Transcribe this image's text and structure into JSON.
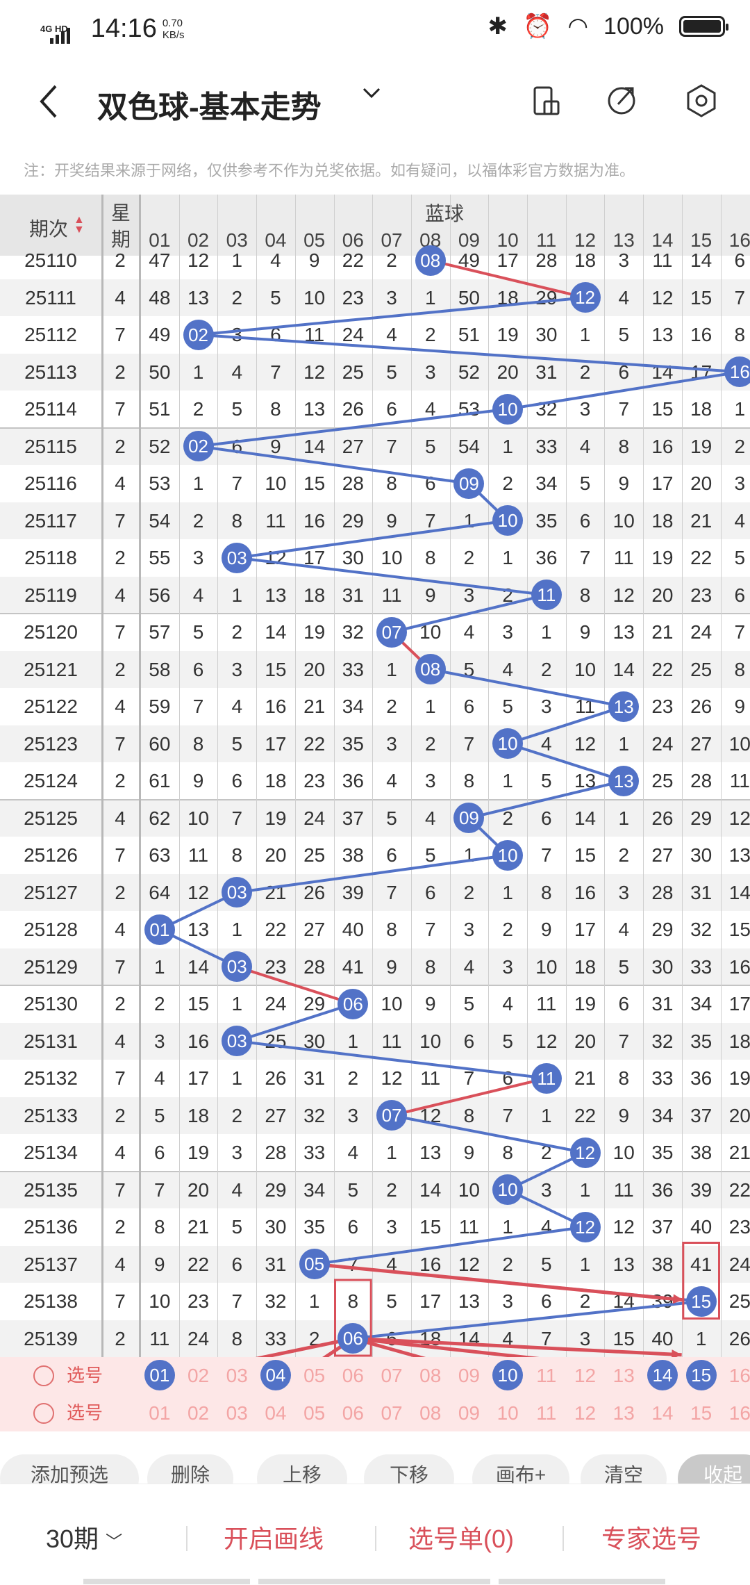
{
  "status": {
    "net": "4G HD",
    "time": "14:16",
    "speed_value": "0.70",
    "speed_unit": "KB/s",
    "battery": "100%"
  },
  "header": {
    "title": "双色球-基本走势"
  },
  "notice": "注：开奖结果来源于网络，仅供参考不作为兑奖依据。如有疑问，以福体彩官方数据为准。",
  "table": {
    "period_header": "期次",
    "week_header": "星期",
    "blue_header": "蓝球",
    "columns": [
      "01",
      "02",
      "03",
      "04",
      "05",
      "06",
      "07",
      "08",
      "09",
      "10",
      "11",
      "12",
      "13",
      "14",
      "15",
      "16"
    ],
    "rows": [
      {
        "period": "25110",
        "week": "2",
        "cells": [
          "47",
          "12",
          "1",
          "4",
          "9",
          "22",
          "2",
          "08",
          "49",
          "17",
          "28",
          "18",
          "3",
          "11",
          "14",
          "6"
        ]
      },
      {
        "period": "25111",
        "week": "4",
        "cells": [
          "48",
          "13",
          "2",
          "5",
          "10",
          "23",
          "3",
          "1",
          "50",
          "18",
          "29",
          "12",
          "4",
          "12",
          "15",
          "7"
        ]
      },
      {
        "period": "25112",
        "week": "7",
        "cells": [
          "49",
          "02",
          "3",
          "6",
          "11",
          "24",
          "4",
          "2",
          "51",
          "19",
          "30",
          "1",
          "5",
          "13",
          "16",
          "8"
        ]
      },
      {
        "period": "25113",
        "week": "2",
        "cells": [
          "50",
          "1",
          "4",
          "7",
          "12",
          "25",
          "5",
          "3",
          "52",
          "20",
          "31",
          "2",
          "6",
          "14",
          "17",
          "16"
        ]
      },
      {
        "period": "25114",
        "week": "7",
        "cells": [
          "51",
          "2",
          "5",
          "8",
          "13",
          "26",
          "6",
          "4",
          "53",
          "10",
          "32",
          "3",
          "7",
          "15",
          "18",
          "1"
        ]
      },
      {
        "period": "25115",
        "week": "2",
        "cells": [
          "52",
          "02",
          "6",
          "9",
          "14",
          "27",
          "7",
          "5",
          "54",
          "1",
          "33",
          "4",
          "8",
          "16",
          "19",
          "2"
        ]
      },
      {
        "period": "25116",
        "week": "4",
        "cells": [
          "53",
          "1",
          "7",
          "10",
          "15",
          "28",
          "8",
          "6",
          "09",
          "2",
          "34",
          "5",
          "9",
          "17",
          "20",
          "3"
        ]
      },
      {
        "period": "25117",
        "week": "7",
        "cells": [
          "54",
          "2",
          "8",
          "11",
          "16",
          "29",
          "9",
          "7",
          "1",
          "10",
          "35",
          "6",
          "10",
          "18",
          "21",
          "4"
        ]
      },
      {
        "period": "25118",
        "week": "2",
        "cells": [
          "55",
          "3",
          "03",
          "12",
          "17",
          "30",
          "10",
          "8",
          "2",
          "1",
          "36",
          "7",
          "11",
          "19",
          "22",
          "5"
        ]
      },
      {
        "period": "25119",
        "week": "4",
        "cells": [
          "56",
          "4",
          "1",
          "13",
          "18",
          "31",
          "11",
          "9",
          "3",
          "2",
          "11",
          "8",
          "12",
          "20",
          "23",
          "6"
        ]
      },
      {
        "period": "25120",
        "week": "7",
        "cells": [
          "57",
          "5",
          "2",
          "14",
          "19",
          "32",
          "07",
          "10",
          "4",
          "3",
          "1",
          "9",
          "13",
          "21",
          "24",
          "7"
        ]
      },
      {
        "period": "25121",
        "week": "2",
        "cells": [
          "58",
          "6",
          "3",
          "15",
          "20",
          "33",
          "1",
          "08",
          "5",
          "4",
          "2",
          "10",
          "14",
          "22",
          "25",
          "8"
        ]
      },
      {
        "period": "25122",
        "week": "4",
        "cells": [
          "59",
          "7",
          "4",
          "16",
          "21",
          "34",
          "2",
          "1",
          "6",
          "5",
          "3",
          "11",
          "13",
          "23",
          "26",
          "9"
        ]
      },
      {
        "period": "25123",
        "week": "7",
        "cells": [
          "60",
          "8",
          "5",
          "17",
          "22",
          "35",
          "3",
          "2",
          "7",
          "10",
          "4",
          "12",
          "1",
          "24",
          "27",
          "10"
        ]
      },
      {
        "period": "25124",
        "week": "2",
        "cells": [
          "61",
          "9",
          "6",
          "18",
          "23",
          "36",
          "4",
          "3",
          "8",
          "1",
          "5",
          "13",
          "13",
          "25",
          "28",
          "11"
        ]
      },
      {
        "period": "25125",
        "week": "4",
        "cells": [
          "62",
          "10",
          "7",
          "19",
          "24",
          "37",
          "5",
          "4",
          "09",
          "2",
          "6",
          "14",
          "1",
          "26",
          "29",
          "12"
        ]
      },
      {
        "period": "25126",
        "week": "7",
        "cells": [
          "63",
          "11",
          "8",
          "20",
          "25",
          "38",
          "6",
          "5",
          "1",
          "10",
          "7",
          "15",
          "2",
          "27",
          "30",
          "13"
        ]
      },
      {
        "period": "25127",
        "week": "2",
        "cells": [
          "64",
          "12",
          "03",
          "21",
          "26",
          "39",
          "7",
          "6",
          "2",
          "1",
          "8",
          "16",
          "3",
          "28",
          "31",
          "14"
        ]
      },
      {
        "period": "25128",
        "week": "4",
        "cells": [
          "01",
          "13",
          "1",
          "22",
          "27",
          "40",
          "8",
          "7",
          "3",
          "2",
          "9",
          "17",
          "4",
          "29",
          "32",
          "15"
        ]
      },
      {
        "period": "25129",
        "week": "7",
        "cells": [
          "1",
          "14",
          "03",
          "23",
          "28",
          "41",
          "9",
          "8",
          "4",
          "3",
          "10",
          "18",
          "5",
          "30",
          "33",
          "16"
        ]
      },
      {
        "period": "25130",
        "week": "2",
        "cells": [
          "2",
          "15",
          "1",
          "24",
          "29",
          "06",
          "10",
          "9",
          "5",
          "4",
          "11",
          "19",
          "6",
          "31",
          "34",
          "17"
        ]
      },
      {
        "period": "25131",
        "week": "4",
        "cells": [
          "3",
          "16",
          "03",
          "25",
          "30",
          "1",
          "11",
          "10",
          "6",
          "5",
          "12",
          "20",
          "7",
          "32",
          "35",
          "18"
        ]
      },
      {
        "period": "25132",
        "week": "7",
        "cells": [
          "4",
          "17",
          "1",
          "26",
          "31",
          "2",
          "12",
          "11",
          "7",
          "6",
          "11",
          "21",
          "8",
          "33",
          "36",
          "19"
        ]
      },
      {
        "period": "25133",
        "week": "2",
        "cells": [
          "5",
          "18",
          "2",
          "27",
          "32",
          "3",
          "07",
          "12",
          "8",
          "7",
          "1",
          "22",
          "9",
          "34",
          "37",
          "20"
        ]
      },
      {
        "period": "25134",
        "week": "4",
        "cells": [
          "6",
          "19",
          "3",
          "28",
          "33",
          "4",
          "1",
          "13",
          "9",
          "8",
          "2",
          "12",
          "10",
          "35",
          "38",
          "21"
        ]
      },
      {
        "period": "25135",
        "week": "7",
        "cells": [
          "7",
          "20",
          "4",
          "29",
          "34",
          "5",
          "2",
          "14",
          "10",
          "10",
          "3",
          "1",
          "11",
          "36",
          "39",
          "22"
        ]
      },
      {
        "period": "25136",
        "week": "2",
        "cells": [
          "8",
          "21",
          "5",
          "30",
          "35",
          "6",
          "3",
          "15",
          "11",
          "1",
          "4",
          "12",
          "12",
          "37",
          "40",
          "23"
        ]
      },
      {
        "period": "25137",
        "week": "4",
        "cells": [
          "9",
          "22",
          "6",
          "31",
          "05",
          "7",
          "4",
          "16",
          "12",
          "2",
          "5",
          "1",
          "13",
          "38",
          "41",
          "24"
        ]
      },
      {
        "period": "25138",
        "week": "7",
        "cells": [
          "10",
          "23",
          "7",
          "32",
          "1",
          "8",
          "5",
          "17",
          "13",
          "3",
          "6",
          "2",
          "14",
          "39",
          "15",
          "25"
        ]
      },
      {
        "period": "25139",
        "week": "2",
        "cells": [
          "11",
          "24",
          "8",
          "33",
          "2",
          "06",
          "6",
          "18",
          "14",
          "4",
          "7",
          "3",
          "15",
          "40",
          "1",
          "26"
        ]
      }
    ],
    "balls": [
      8,
      12,
      2,
      16,
      10,
      2,
      9,
      10,
      3,
      11,
      7,
      8,
      13,
      10,
      13,
      9,
      10,
      3,
      1,
      3,
      6,
      3,
      11,
      7,
      12,
      10,
      12,
      5,
      15,
      6
    ],
    "pick_label": "选号",
    "pick_row1_selected": [
      "01",
      "04",
      "10",
      "14",
      "15"
    ]
  },
  "toolbar": {
    "buttons": [
      "添加预选",
      "删除",
      "上移",
      "下移",
      "画布+",
      "清空",
      "收起"
    ]
  },
  "bottom": {
    "periods": "30期",
    "draw": "开启画线",
    "list": "选号单(0)",
    "expert": "专家选号"
  },
  "colors": {
    "blue_ball": "#5272c7",
    "red": "#d9505a",
    "pink_row": "#fde7e7"
  }
}
